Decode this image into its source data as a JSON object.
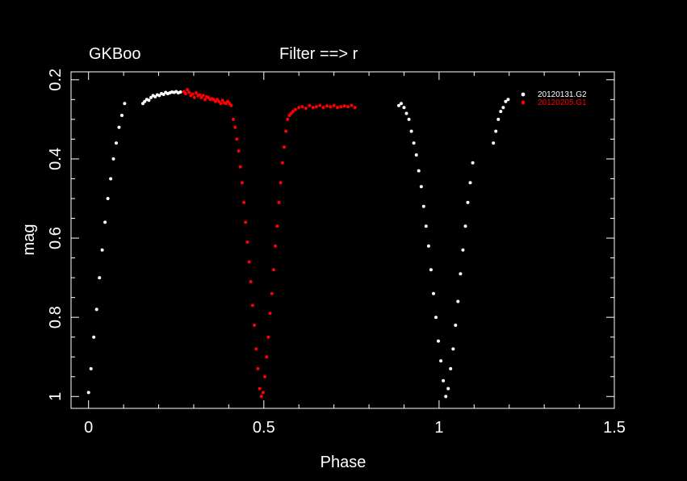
{
  "chart_data": {
    "type": "scatter",
    "title": "GKBoo",
    "subtitle": "Filter ==> r",
    "xlabel": "Phase",
    "ylabel": "mag",
    "xlim": [
      -0.05,
      1.5
    ],
    "ylim": [
      1.03,
      0.18
    ],
    "y_inverted": true,
    "grid": false,
    "legend_position": "top-right",
    "xticks": [
      0,
      0.5,
      1,
      1.5
    ],
    "xtick_labels": [
      "0",
      "0.5",
      "1",
      "1.5"
    ],
    "yticks": [
      0.2,
      0.4,
      0.6,
      0.8,
      1.0
    ],
    "ytick_labels": [
      "0.2",
      "0.4",
      "0.6",
      "0.8",
      "1"
    ],
    "series": [
      {
        "name": "20120131.G2",
        "color": "#ffffff",
        "x": [
          0.0,
          0.007,
          0.015,
          0.023,
          0.031,
          0.039,
          0.047,
          0.055,
          0.063,
          0.071,
          0.079,
          0.087,
          0.095,
          0.103,
          0.155,
          0.16,
          0.166,
          0.172,
          0.178,
          0.184,
          0.19,
          0.196,
          0.202,
          0.208,
          0.214,
          0.22,
          0.226,
          0.232,
          0.238,
          0.244,
          0.25,
          0.256,
          0.262,
          0.885,
          0.892,
          0.9,
          0.907,
          0.914,
          0.921,
          0.928,
          0.935,
          0.942,
          0.949,
          0.956,
          0.963,
          0.97,
          0.977,
          0.984,
          0.991,
          0.998,
          1.005,
          1.012,
          1.019,
          1.026,
          1.033,
          1.04,
          1.047,
          1.054,
          1.061,
          1.068,
          1.075,
          1.082,
          1.089,
          1.096,
          1.155,
          1.162,
          1.169,
          1.176,
          1.183,
          1.19,
          1.197
        ],
        "y": [
          0.99,
          0.93,
          0.85,
          0.78,
          0.7,
          0.63,
          0.56,
          0.5,
          0.45,
          0.4,
          0.36,
          0.32,
          0.29,
          0.26,
          0.26,
          0.255,
          0.25,
          0.252,
          0.245,
          0.24,
          0.243,
          0.238,
          0.24,
          0.235,
          0.237,
          0.232,
          0.235,
          0.233,
          0.231,
          0.232,
          0.23,
          0.233,
          0.231,
          0.265,
          0.26,
          0.27,
          0.285,
          0.3,
          0.33,
          0.36,
          0.39,
          0.43,
          0.47,
          0.52,
          0.57,
          0.62,
          0.68,
          0.74,
          0.8,
          0.86,
          0.91,
          0.96,
          1.0,
          0.98,
          0.93,
          0.88,
          0.82,
          0.76,
          0.69,
          0.63,
          0.57,
          0.51,
          0.46,
          0.41,
          0.36,
          0.33,
          0.3,
          0.28,
          0.27,
          0.255,
          0.25
        ]
      },
      {
        "name": "20120205.G1",
        "color": "#ff0000",
        "x": [
          0.272,
          0.277,
          0.282,
          0.287,
          0.292,
          0.297,
          0.302,
          0.307,
          0.312,
          0.317,
          0.322,
          0.327,
          0.332,
          0.337,
          0.342,
          0.347,
          0.352,
          0.357,
          0.362,
          0.367,
          0.372,
          0.377,
          0.382,
          0.387,
          0.392,
          0.397,
          0.402,
          0.407,
          0.413,
          0.418,
          0.423,
          0.428,
          0.433,
          0.438,
          0.443,
          0.448,
          0.453,
          0.458,
          0.463,
          0.468,
          0.473,
          0.478,
          0.483,
          0.488,
          0.493,
          0.498,
          0.503,
          0.508,
          0.513,
          0.518,
          0.523,
          0.528,
          0.533,
          0.538,
          0.543,
          0.548,
          0.553,
          0.558,
          0.563,
          0.568,
          0.573,
          0.578,
          0.583,
          0.59,
          0.6,
          0.61,
          0.62,
          0.63,
          0.64,
          0.65,
          0.66,
          0.67,
          0.68,
          0.69,
          0.7,
          0.71,
          0.72,
          0.73,
          0.74,
          0.75,
          0.76
        ],
        "y": [
          0.23,
          0.235,
          0.225,
          0.232,
          0.24,
          0.236,
          0.245,
          0.233,
          0.24,
          0.238,
          0.245,
          0.24,
          0.25,
          0.243,
          0.245,
          0.25,
          0.248,
          0.25,
          0.255,
          0.25,
          0.255,
          0.26,
          0.252,
          0.258,
          0.26,
          0.255,
          0.26,
          0.265,
          0.3,
          0.32,
          0.35,
          0.38,
          0.42,
          0.46,
          0.51,
          0.56,
          0.61,
          0.66,
          0.71,
          0.77,
          0.82,
          0.88,
          0.93,
          0.98,
          1.0,
          0.99,
          0.95,
          0.9,
          0.85,
          0.79,
          0.74,
          0.68,
          0.62,
          0.57,
          0.51,
          0.46,
          0.41,
          0.37,
          0.33,
          0.3,
          0.29,
          0.285,
          0.28,
          0.275,
          0.27,
          0.268,
          0.272,
          0.265,
          0.27,
          0.268,
          0.265,
          0.27,
          0.266,
          0.268,
          0.265,
          0.27,
          0.268,
          0.266,
          0.268,
          0.265,
          0.27
        ]
      }
    ]
  }
}
